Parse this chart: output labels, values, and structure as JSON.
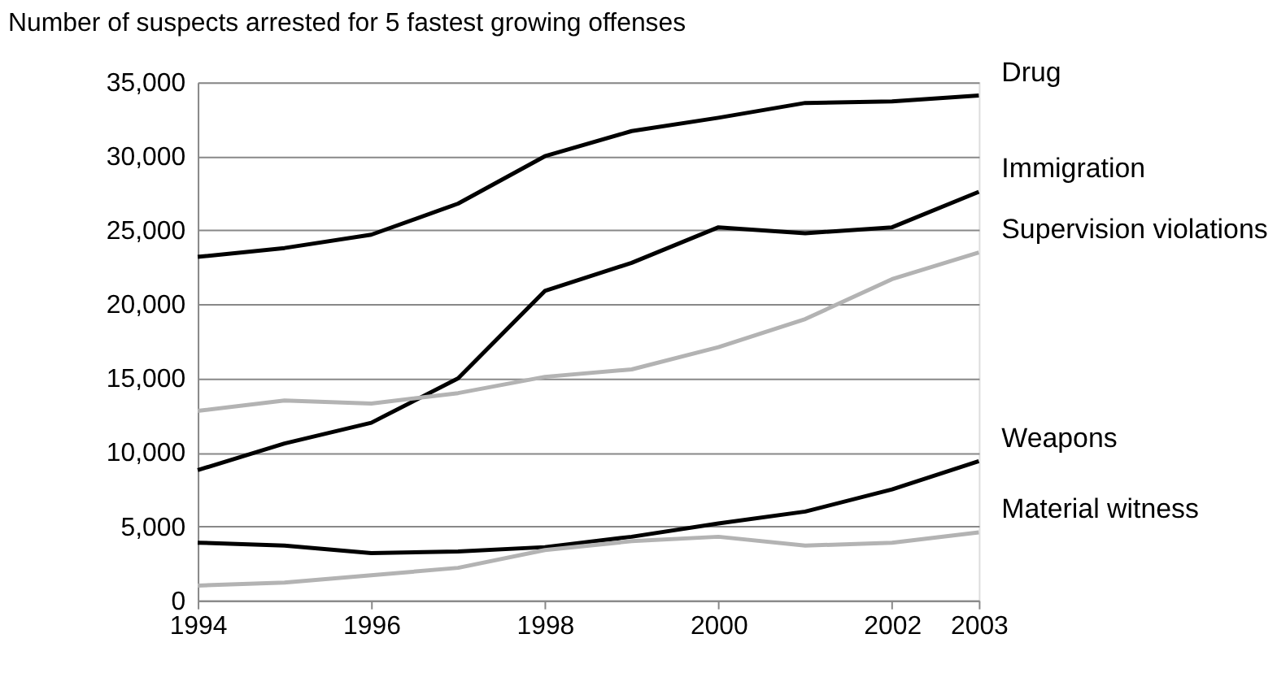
{
  "chart_data": {
    "type": "line",
    "title": "Number of suspects arrested for 5 fastest growing offenses",
    "x": [
      1994,
      1995,
      1996,
      1997,
      1998,
      1999,
      2000,
      2001,
      2002,
      2003
    ],
    "series": [
      {
        "name": "Drug",
        "color": "#000000",
        "values": [
          23200,
          23800,
          24700,
          26800,
          30000,
          31700,
          32600,
          33600,
          33700,
          34100
        ]
      },
      {
        "name": "Immigration",
        "color": "#000000",
        "values": [
          8800,
          10600,
          12000,
          15000,
          20900,
          22800,
          25200,
          24800,
          25200,
          27600
        ]
      },
      {
        "name": "Supervision violations",
        "color": "#b3b3b3",
        "values": [
          12800,
          13500,
          13300,
          14000,
          15100,
          15600,
          17100,
          19000,
          21700,
          23500
        ]
      },
      {
        "name": "Weapons",
        "color": "#000000",
        "values": [
          3900,
          3700,
          3200,
          3300,
          3600,
          4300,
          5200,
          6000,
          7500,
          9400
        ]
      },
      {
        "name": "Material witness",
        "color": "#b3b3b3",
        "values": [
          1000,
          1200,
          1700,
          2200,
          3400,
          4000,
          4300,
          3700,
          3900,
          4600
        ]
      }
    ],
    "xlim": [
      1994,
      2003
    ],
    "xticks": [
      1994,
      1996,
      1998,
      2000,
      2002,
      2003
    ],
    "ylim": [
      0,
      35000
    ],
    "yticks": [
      0,
      {
        "value": 5000,
        "label": "5,000"
      },
      {
        "value": 10000,
        "label": "10,000"
      },
      {
        "value": 15000,
        "label": "15,000"
      },
      {
        "value": 20000,
        "label": "20,000"
      },
      {
        "value": 25000,
        "label": "25,000"
      },
      {
        "value": 30000,
        "label": "30,000"
      },
      {
        "value": 35000,
        "label": "35,000"
      }
    ],
    "grid": "y",
    "legend": false,
    "marker": "none",
    "line_style": "solid"
  }
}
